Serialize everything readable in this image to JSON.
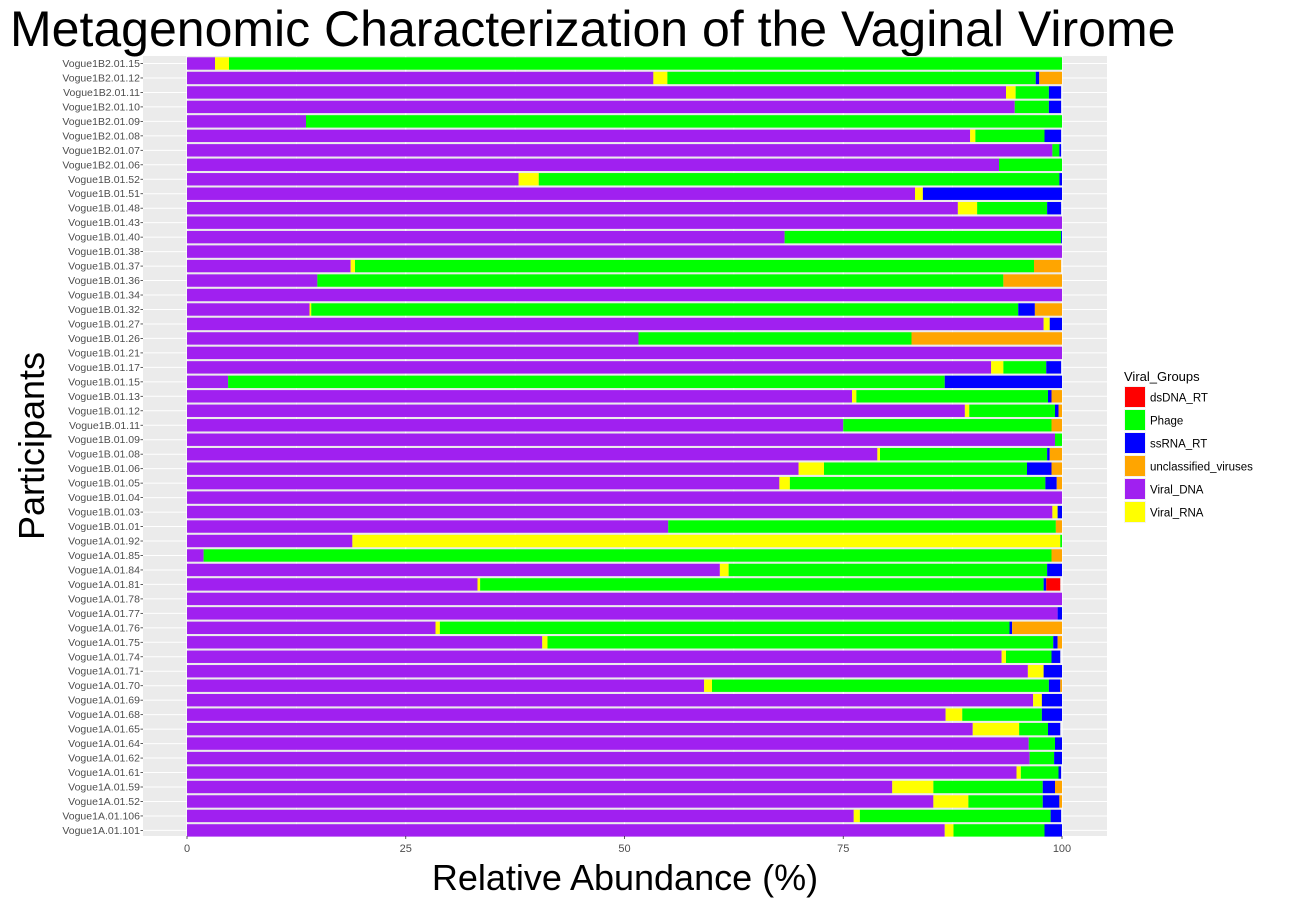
{
  "chart_data": {
    "type": "bar",
    "orientation": "horizontal",
    "stacked": true,
    "title": "Metagenomic Characterization of the Vaginal Virome",
    "xlabel": "Relative Abundance (%)",
    "ylabel": "Participants",
    "xlim": [
      0,
      100
    ],
    "xticks": [
      "0",
      "25",
      "50",
      "75",
      "100"
    ],
    "grid": true,
    "legend": {
      "title": "Viral_Groups",
      "position": "right"
    },
    "categories": [
      "Vogue1B2.01.15",
      "Vogue1B2.01.12",
      "Vogue1B2.01.11",
      "Vogue1B2.01.10",
      "Vogue1B2.01.09",
      "Vogue1B2.01.08",
      "Vogue1B2.01.07",
      "Vogue1B2.01.06",
      "Vogue1B.01.52",
      "Vogue1B.01.51",
      "Vogue1B.01.48",
      "Vogue1B.01.43",
      "Vogue1B.01.40",
      "Vogue1B.01.38",
      "Vogue1B.01.37",
      "Vogue1B.01.36",
      "Vogue1B.01.34",
      "Vogue1B.01.32",
      "Vogue1B.01.27",
      "Vogue1B.01.26",
      "Vogue1B.01.21",
      "Vogue1B.01.17",
      "Vogue1B.01.15",
      "Vogue1B.01.13",
      "Vogue1B.01.12",
      "Vogue1B.01.11",
      "Vogue1B.01.09",
      "Vogue1B.01.08",
      "Vogue1B.01.06",
      "Vogue1B.01.05",
      "Vogue1B.01.04",
      "Vogue1B.01.03",
      "Vogue1B.01.01",
      "Vogue1A.01.92",
      "Vogue1A.01.85",
      "Vogue1A.01.84",
      "Vogue1A.01.81",
      "Vogue1A.01.78",
      "Vogue1A.01.77",
      "Vogue1A.01.76",
      "Vogue1A.01.75",
      "Vogue1A.01.74",
      "Vogue1A.01.71",
      "Vogue1A.01.70",
      "Vogue1A.01.69",
      "Vogue1A.01.68",
      "Vogue1A.01.65",
      "Vogue1A.01.64",
      "Vogue1A.01.62",
      "Vogue1A.01.61",
      "Vogue1A.01.59",
      "Vogue1A.01.52",
      "Vogue1A.01.106",
      "Vogue1A.01.101"
    ],
    "series": [
      {
        "name": "Viral_DNA",
        "color": "#a020f0",
        "values": [
          3.2,
          53.3,
          93.6,
          94.6,
          13.6,
          89.5,
          98.9,
          92.8,
          37.9,
          83.2,
          88.1,
          100,
          68.3,
          100,
          18.7,
          14.9,
          100,
          14.0,
          97.9,
          51.6,
          100,
          91.9,
          4.7,
          76.0,
          88.9,
          75.0,
          99.2,
          78.9,
          69.9,
          67.7,
          100,
          98.9,
          55.0,
          18.9,
          1.9,
          60.9,
          33.2,
          100,
          99.5,
          28.4,
          40.6,
          93.1,
          96.1,
          59.1,
          96.7,
          86.7,
          89.8,
          96.2,
          96.3,
          94.8,
          80.6,
          85.3,
          76.2,
          86.6
        ]
      },
      {
        "name": "Viral_RNA",
        "color": "#ffff00",
        "values": [
          1.6,
          1.6,
          1.1,
          0,
          0,
          0.6,
          0,
          0,
          2.3,
          0.9,
          2.2,
          0,
          0,
          0,
          0.5,
          0,
          0,
          0.2,
          0.7,
          0,
          0,
          1.4,
          0,
          0.5,
          0.5,
          0,
          0,
          0.3,
          2.9,
          1.2,
          0,
          0.6,
          0,
          80.9,
          0,
          1.0,
          0.3,
          0,
          0,
          0.5,
          0.6,
          0.5,
          1.8,
          0.9,
          1.0,
          1.9,
          5.3,
          0,
          0,
          0.5,
          4.7,
          4.0,
          0.7,
          1.0
        ]
      },
      {
        "name": "Phage",
        "color": "#00ff00",
        "values": [
          95.2,
          42.1,
          3.8,
          3.9,
          86.4,
          7.9,
          0.8,
          7.2,
          59.5,
          0,
          8.0,
          0,
          31.6,
          0,
          77.6,
          78.4,
          0,
          80.8,
          0,
          31.2,
          0,
          4.9,
          81.9,
          21.9,
          9.8,
          23.8,
          0.8,
          19.1,
          23.2,
          29.2,
          0,
          0,
          44.3,
          0.2,
          96.9,
          36.4,
          64.4,
          0,
          0,
          65.1,
          57.8,
          5.2,
          0,
          38.5,
          0,
          9.1,
          3.3,
          3.0,
          2.8,
          4.3,
          12.5,
          8.5,
          21.8,
          10.4
        ]
      },
      {
        "name": "ssRNA_RT",
        "color": "#0000ff",
        "values": [
          0,
          0.4,
          1.4,
          1.4,
          0,
          1.9,
          0.2,
          0,
          0.3,
          15.9,
          1.6,
          0,
          0.1,
          0,
          0,
          0,
          0,
          1.9,
          1.4,
          0,
          0,
          1.7,
          13.4,
          0.4,
          0.4,
          0,
          0,
          0.3,
          2.8,
          1.3,
          0,
          0.5,
          0,
          0,
          0,
          1.7,
          0.3,
          0,
          0.5,
          0.3,
          0.5,
          1.0,
          2.1,
          1.3,
          2.3,
          2.3,
          1.4,
          0.8,
          0.9,
          0.3,
          1.4,
          1.9,
          1.2,
          2.0
        ]
      },
      {
        "name": "unclassified_viruses",
        "color": "#ffa500",
        "values": [
          0,
          2.6,
          0,
          0,
          0,
          0,
          0,
          0,
          0,
          0,
          0,
          0,
          0,
          0,
          3.1,
          6.7,
          0,
          3.1,
          0,
          17.2,
          0,
          0,
          0,
          1.2,
          0.4,
          1.2,
          0,
          1.4,
          1.2,
          0.6,
          0,
          0,
          0.7,
          0,
          1.2,
          0,
          0,
          0,
          0,
          5.7,
          0.5,
          0,
          0,
          0.2,
          0,
          0,
          0,
          0,
          0,
          0,
          0.8,
          0.3,
          0,
          0
        ]
      },
      {
        "name": "dsDNA_RT",
        "color": "#ff0000",
        "values": [
          0,
          0,
          0,
          0,
          0,
          0,
          0,
          0,
          0,
          0,
          0,
          0,
          0,
          0,
          0,
          0,
          0,
          0,
          0,
          0,
          0,
          0,
          0,
          0,
          0,
          0,
          0,
          0,
          0,
          0,
          0,
          0,
          0,
          0,
          0,
          0,
          1.6,
          0,
          0,
          0,
          0,
          0,
          0,
          0,
          0,
          0,
          0,
          0,
          0,
          0,
          0,
          0,
          0,
          0
        ]
      }
    ],
    "legend_entries": [
      {
        "label": "dsDNA_RT",
        "color": "#ff0000"
      },
      {
        "label": "Phage",
        "color": "#00ff00"
      },
      {
        "label": "ssRNA_RT",
        "color": "#0000ff"
      },
      {
        "label": "unclassified_viruses",
        "color": "#ffa500"
      },
      {
        "label": "Viral_DNA",
        "color": "#a020f0"
      },
      {
        "label": "Viral_RNA",
        "color": "#ffff00"
      }
    ]
  }
}
